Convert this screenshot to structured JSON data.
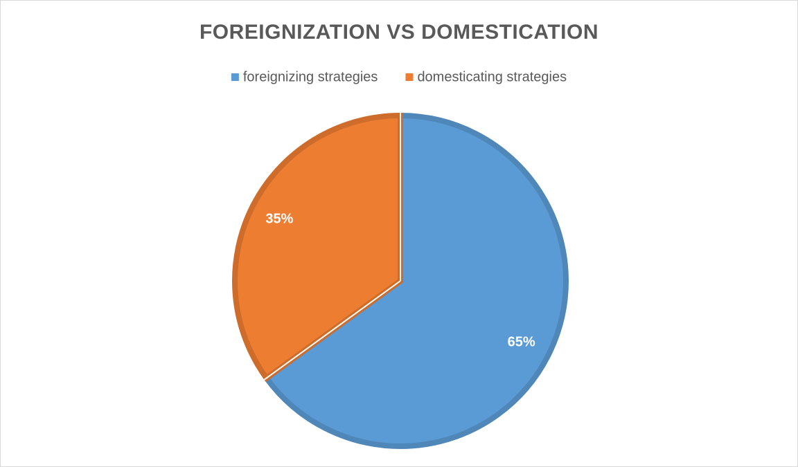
{
  "chart_data": {
    "type": "pie",
    "title": "FOREIGNIZATION VS DOMESTICATION",
    "categories": [
      "foreignizing strategies",
      "domesticating strategies"
    ],
    "values": [
      65,
      35
    ],
    "value_labels": [
      "65%",
      "35%"
    ],
    "colors": [
      "#5b9bd5",
      "#ed7d31"
    ]
  }
}
